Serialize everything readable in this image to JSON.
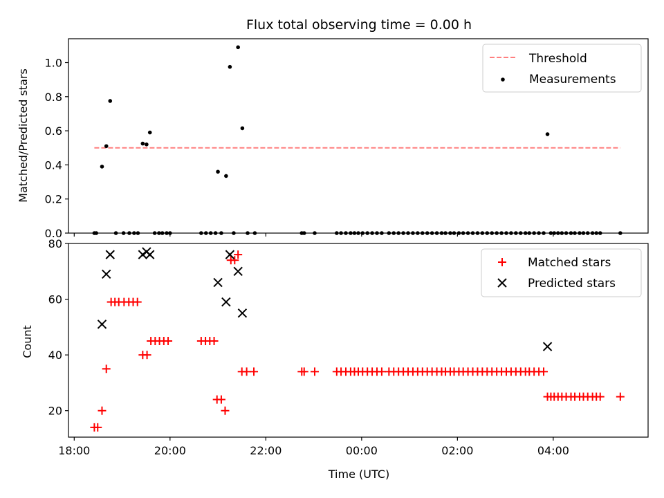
{
  "chart_data": [
    {
      "type": "scatter",
      "title": "Flux total observing time = 0.00 h",
      "xlabel": "",
      "ylabel": "Matched/Predicted stars",
      "ylim": [
        0,
        1.14
      ],
      "yticks": [
        0.0,
        0.2,
        0.4,
        0.6,
        0.8,
        1.0
      ],
      "ytick_labels": [
        "0.0",
        "0.2",
        "0.4",
        "0.6",
        "0.8",
        "1.0"
      ],
      "xlim_hours": [
        17.88,
        29.98
      ],
      "x_tick_hours": [
        18,
        20,
        22,
        24,
        26,
        28
      ],
      "x_tick_labels": [
        "",
        "",
        "",
        "",
        "",
        ""
      ],
      "legend": {
        "placement": "top-right",
        "entries": [
          "Threshold",
          "Measurements"
        ]
      },
      "threshold": {
        "name": "Threshold",
        "y": 0.5,
        "x_start_hour": 18.42,
        "x_end_hour": 29.4,
        "color": "#ff7f7f",
        "style": "dashed"
      },
      "series": [
        {
          "name": "Measurements",
          "color": "#000000",
          "points": [
            [
              18.42,
              0
            ],
            [
              18.46,
              0
            ],
            [
              18.58,
              0.39
            ],
            [
              18.67,
              0.51
            ],
            [
              18.75,
              0.775
            ],
            [
              18.87,
              0
            ],
            [
              19.03,
              0
            ],
            [
              19.15,
              0
            ],
            [
              19.25,
              0
            ],
            [
              19.33,
              0
            ],
            [
              19.43,
              0.525
            ],
            [
              19.51,
              0.52
            ],
            [
              19.58,
              0.59
            ],
            [
              19.68,
              0
            ],
            [
              19.77,
              0
            ],
            [
              19.84,
              0
            ],
            [
              19.93,
              0
            ],
            [
              20.0,
              0
            ],
            [
              20.65,
              0
            ],
            [
              20.75,
              0
            ],
            [
              20.85,
              0
            ],
            [
              20.95,
              0
            ],
            [
              21.0,
              0.36
            ],
            [
              21.07,
              0
            ],
            [
              21.17,
              0.335
            ],
            [
              21.25,
              0.975
            ],
            [
              21.33,
              0
            ],
            [
              21.42,
              1.09
            ],
            [
              21.51,
              0.615
            ],
            [
              21.62,
              0
            ],
            [
              21.77,
              0
            ],
            [
              22.75,
              0
            ],
            [
              22.8,
              0
            ],
            [
              23.02,
              0
            ],
            [
              23.48,
              0
            ],
            [
              23.57,
              0
            ],
            [
              23.67,
              0
            ],
            [
              23.77,
              0
            ],
            [
              23.85,
              0
            ],
            [
              23.93,
              0
            ],
            [
              24.02,
              0
            ],
            [
              24.12,
              0
            ],
            [
              24.22,
              0
            ],
            [
              24.32,
              0
            ],
            [
              24.42,
              0
            ],
            [
              24.57,
              0
            ],
            [
              24.67,
              0
            ],
            [
              24.77,
              0
            ],
            [
              24.87,
              0
            ],
            [
              24.97,
              0
            ],
            [
              25.07,
              0
            ],
            [
              25.17,
              0
            ],
            [
              25.27,
              0
            ],
            [
              25.37,
              0
            ],
            [
              25.47,
              0
            ],
            [
              25.57,
              0
            ],
            [
              25.67,
              0
            ],
            [
              25.75,
              0
            ],
            [
              25.85,
              0
            ],
            [
              25.93,
              0
            ],
            [
              26.03,
              0
            ],
            [
              26.12,
              0
            ],
            [
              26.22,
              0
            ],
            [
              26.32,
              0
            ],
            [
              26.42,
              0
            ],
            [
              26.52,
              0
            ],
            [
              26.62,
              0
            ],
            [
              26.72,
              0
            ],
            [
              26.82,
              0
            ],
            [
              26.92,
              0
            ],
            [
              27.02,
              0
            ],
            [
              27.12,
              0
            ],
            [
              27.22,
              0
            ],
            [
              27.32,
              0
            ],
            [
              27.42,
              0
            ],
            [
              27.5,
              0
            ],
            [
              27.6,
              0
            ],
            [
              27.7,
              0
            ],
            [
              27.8,
              0
            ],
            [
              27.88,
              0.58
            ],
            [
              27.95,
              0
            ],
            [
              28.02,
              0
            ],
            [
              28.1,
              0
            ],
            [
              28.18,
              0
            ],
            [
              28.27,
              0
            ],
            [
              28.37,
              0
            ],
            [
              28.45,
              0
            ],
            [
              28.55,
              0
            ],
            [
              28.63,
              0
            ],
            [
              28.72,
              0
            ],
            [
              28.82,
              0
            ],
            [
              28.9,
              0
            ],
            [
              28.98,
              0
            ],
            [
              29.4,
              0
            ]
          ]
        }
      ]
    },
    {
      "type": "scatter",
      "title": "",
      "xlabel": "Time (UTC)",
      "ylabel": "Count",
      "ylim": [
        10.5,
        80
      ],
      "yticks": [
        20,
        40,
        60,
        80
      ],
      "ytick_labels": [
        "20",
        "40",
        "60",
        "80"
      ],
      "xlim_hours": [
        17.88,
        29.98
      ],
      "x_tick_hours": [
        18,
        20,
        22,
        24,
        26,
        28
      ],
      "x_tick_labels": [
        "18:00",
        "20:00",
        "22:00",
        "00:00",
        "02:00",
        "04:00"
      ],
      "legend": {
        "placement": "top-right",
        "entries": [
          "Matched stars",
          "Predicted stars"
        ]
      },
      "series": [
        {
          "name": "Matched stars",
          "marker": "plus",
          "color": "#ff0000",
          "points": [
            [
              18.42,
              14
            ],
            [
              18.49,
              14
            ],
            [
              18.58,
              20
            ],
            [
              18.67,
              35
            ],
            [
              18.77,
              59
            ],
            [
              18.85,
              59
            ],
            [
              18.93,
              59
            ],
            [
              19.04,
              59
            ],
            [
              19.14,
              59
            ],
            [
              19.23,
              59
            ],
            [
              19.32,
              59
            ],
            [
              19.43,
              40
            ],
            [
              19.52,
              40
            ],
            [
              19.6,
              45
            ],
            [
              19.69,
              45
            ],
            [
              19.78,
              45
            ],
            [
              19.87,
              45
            ],
            [
              19.96,
              45
            ],
            [
              20.65,
              45
            ],
            [
              20.74,
              45
            ],
            [
              20.83,
              45
            ],
            [
              20.92,
              45
            ],
            [
              20.98,
              24
            ],
            [
              21.07,
              24
            ],
            [
              21.15,
              20
            ],
            [
              21.27,
              74
            ],
            [
              21.35,
              74
            ],
            [
              21.42,
              76
            ],
            [
              21.5,
              34
            ],
            [
              21.6,
              34
            ],
            [
              21.75,
              34
            ],
            [
              22.75,
              34
            ],
            [
              22.8,
              34
            ],
            [
              23.02,
              34
            ],
            [
              23.48,
              34
            ],
            [
              23.57,
              34
            ],
            [
              23.67,
              34
            ],
            [
              23.77,
              34
            ],
            [
              23.85,
              34
            ],
            [
              23.93,
              34
            ],
            [
              24.02,
              34
            ],
            [
              24.12,
              34
            ],
            [
              24.22,
              34
            ],
            [
              24.32,
              34
            ],
            [
              24.42,
              34
            ],
            [
              24.57,
              34
            ],
            [
              24.67,
              34
            ],
            [
              24.77,
              34
            ],
            [
              24.87,
              34
            ],
            [
              24.97,
              34
            ],
            [
              25.07,
              34
            ],
            [
              25.17,
              34
            ],
            [
              25.27,
              34
            ],
            [
              25.37,
              34
            ],
            [
              25.47,
              34
            ],
            [
              25.57,
              34
            ],
            [
              25.67,
              34
            ],
            [
              25.75,
              34
            ],
            [
              25.85,
              34
            ],
            [
              25.93,
              34
            ],
            [
              26.03,
              34
            ],
            [
              26.12,
              34
            ],
            [
              26.22,
              34
            ],
            [
              26.32,
              34
            ],
            [
              26.42,
              34
            ],
            [
              26.52,
              34
            ],
            [
              26.62,
              34
            ],
            [
              26.72,
              34
            ],
            [
              26.82,
              34
            ],
            [
              26.92,
              34
            ],
            [
              27.02,
              34
            ],
            [
              27.12,
              34
            ],
            [
              27.22,
              34
            ],
            [
              27.32,
              34
            ],
            [
              27.42,
              34
            ],
            [
              27.5,
              34
            ],
            [
              27.6,
              34
            ],
            [
              27.7,
              34
            ],
            [
              27.8,
              34
            ],
            [
              27.88,
              25
            ],
            [
              27.95,
              25
            ],
            [
              28.02,
              25
            ],
            [
              28.1,
              25
            ],
            [
              28.18,
              25
            ],
            [
              28.27,
              25
            ],
            [
              28.37,
              25
            ],
            [
              28.45,
              25
            ],
            [
              28.55,
              25
            ],
            [
              28.63,
              25
            ],
            [
              28.72,
              25
            ],
            [
              28.82,
              25
            ],
            [
              28.9,
              25
            ],
            [
              28.98,
              25
            ],
            [
              29.4,
              25
            ]
          ]
        },
        {
          "name": "Predicted stars",
          "marker": "x",
          "color": "#000000",
          "points": [
            [
              18.58,
              51
            ],
            [
              18.67,
              69
            ],
            [
              18.75,
              76
            ],
            [
              19.43,
              76
            ],
            [
              19.51,
              77
            ],
            [
              19.58,
              76
            ],
            [
              21.0,
              66
            ],
            [
              21.17,
              59
            ],
            [
              21.25,
              76
            ],
            [
              21.42,
              70
            ],
            [
              21.51,
              55
            ],
            [
              27.88,
              43
            ]
          ]
        }
      ]
    }
  ]
}
